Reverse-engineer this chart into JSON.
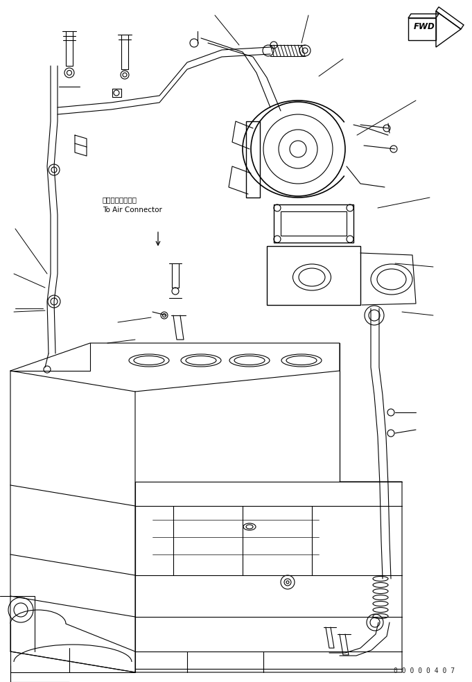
{
  "background_color": "#ffffff",
  "line_color": "#000000",
  "fig_width": 6.81,
  "fig_height": 9.84,
  "dpi": 100,
  "annotation_jp": "エアーコネクタヘ",
  "annotation_en": "To Air Connector",
  "fwd_label": "FWD",
  "watermark": "0 0 0 0 0 4 0 7"
}
